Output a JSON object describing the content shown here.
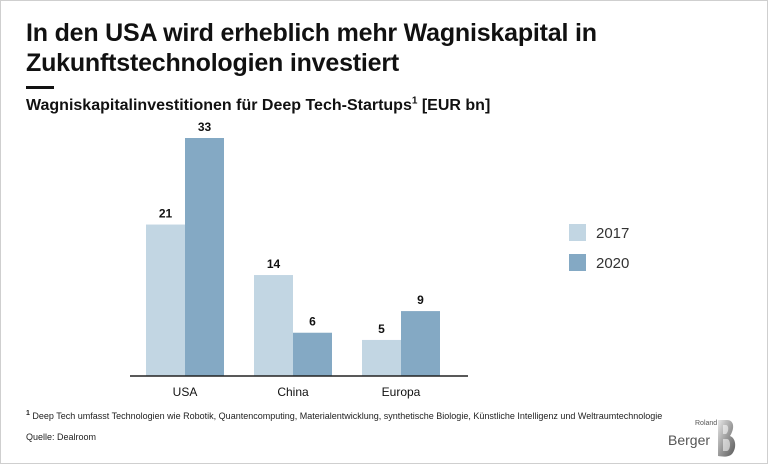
{
  "title": "In den USA wird erheblich mehr Wagniskapital in Zukunftstechnologien investiert",
  "subtitle": "Wagniskapitalinvestitionen für Deep Tech-Startups",
  "subtitle_footnote_mark": "1",
  "subtitle_unit": " [EUR bn]",
  "footnote": {
    "mark": "1",
    "text": " Deep Tech umfasst Technologien wie Robotik, Quantencomputing, Materialentwicklung, synthetische Biologie, Künstliche Intelligenz und Weltraumtechnologie"
  },
  "source": "Quelle: Dealroom",
  "logo": {
    "top": "Roland",
    "bottom": "Berger",
    "mark": "B"
  },
  "colors": {
    "s2017": "#c2d6e3",
    "s2020": "#84a9c4",
    "axis": "#222222",
    "text": "#111111"
  },
  "chart_data": {
    "type": "bar",
    "title": "Wagniskapitalinvestitionen für Deep Tech-Startups [EUR bn]",
    "xlabel": "",
    "ylabel": "EUR bn",
    "categories": [
      "USA",
      "China",
      "Europa"
    ],
    "series": [
      {
        "name": "2017",
        "values": [
          21,
          14,
          5
        ]
      },
      {
        "name": "2020",
        "values": [
          33,
          6,
          9
        ]
      }
    ],
    "ylim": [
      0,
      33
    ],
    "legend": "right",
    "grid": false
  }
}
